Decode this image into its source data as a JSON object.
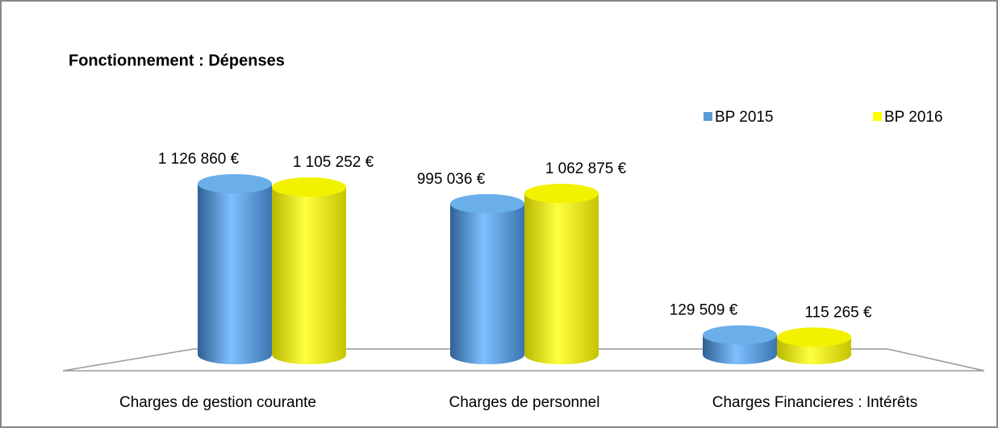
{
  "chart_data": {
    "type": "bar3d",
    "title": "Fonctionnement  : Dépenses",
    "categories": [
      "Charges de gestion courante",
      "Charges de personnel",
      "Charges Financieres : Intérêts"
    ],
    "series": [
      {
        "name": "BP 2015",
        "color": "#5b9bd5",
        "values": [
          1126860,
          995036,
          129509
        ],
        "value_labels": [
          "1 126 860 €",
          "995 036 €",
          "129 509 €"
        ]
      },
      {
        "name": "BP 2016",
        "color": "#ffff00",
        "values": [
          1105252,
          1062875,
          115265
        ],
        "value_labels": [
          "1 105 252 €",
          "1 062 875 €",
          "115 265 €"
        ]
      }
    ],
    "legend": "top-right"
  }
}
